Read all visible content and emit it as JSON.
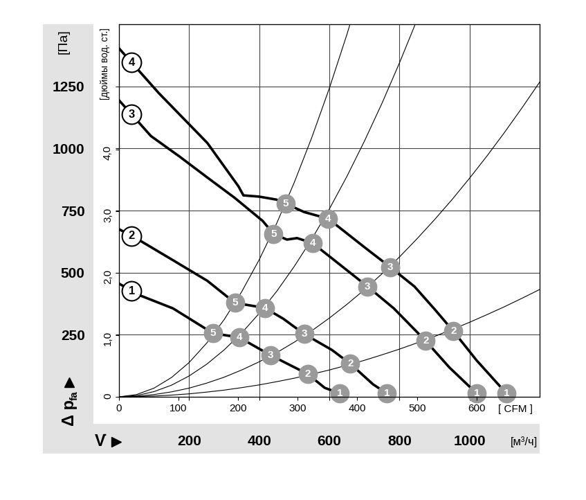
{
  "chart_data": {
    "type": "line",
    "xlabel": "V̇",
    "x_unit": "[м³/ч]",
    "x2_unit": "[ CFM ]",
    "ylabel": "Δ p",
    "ylabel_subscript": "fa",
    "y_unit": "[Па]",
    "y2_unit": "[дюймы вод. ст.]",
    "xlim": [
      0,
      1200
    ],
    "xticks": [
      200,
      400,
      600,
      800,
      1000
    ],
    "x2lim": [
      0,
      706
    ],
    "x2ticks": [
      0,
      100,
      200,
      300,
      400,
      500,
      600
    ],
    "ylim": [
      0,
      1500
    ],
    "yticks": [
      250,
      500,
      750,
      1000,
      1250
    ],
    "y2lim": [
      0,
      6.02
    ],
    "y2ticks": [
      0,
      {
        "value": 1.0,
        "label": "1,0"
      },
      {
        "value": 2.0,
        "label": "2,0"
      },
      {
        "value": 3.0,
        "label": "3,0"
      },
      {
        "value": 4.0,
        "label": "4,0"
      }
    ],
    "grid": true,
    "series": [
      {
        "name": "1",
        "color": "#000000",
        "x": [
          0,
          55,
          154,
          268,
          343,
          433,
          538,
          587,
          630,
          634
        ],
        "values": [
          456,
          411,
          356,
          256,
          239,
          167,
          92,
          36,
          14,
          0
        ],
        "points": {
          "x": [
            268,
            343,
            433,
            538,
            630
          ],
          "values": [
            256,
            239,
            167,
            92,
            14
          ],
          "labels": [
            "5",
            "4",
            "3",
            "2",
            "1"
          ]
        }
      },
      {
        "name": "2",
        "color": "#000000",
        "x": [
          0,
          55,
          154,
          252,
          331,
          416,
          469,
          528,
          607,
          660,
          725,
          764,
          768
        ],
        "values": [
          675,
          633,
          550,
          467,
          378,
          358,
          314,
          253,
          189,
          133,
          50,
          14,
          0
        ],
        "points": {
          "x": [
            331,
            416,
            528,
            660,
            764
          ],
          "values": [
            378,
            358,
            253,
            133,
            14
          ],
          "labels": [
            "5",
            "4",
            "3",
            "2",
            "1"
          ]
        }
      },
      {
        "name": "3",
        "color": "#000000",
        "x": [
          0,
          91,
          173,
          252,
          331,
          410,
          441,
          479,
          508,
          552,
          607,
          709,
          784,
          875,
          942,
          1020,
          1024
        ],
        "values": [
          1194,
          1050,
          967,
          883,
          800,
          708,
          656,
          633,
          639,
          619,
          558,
          444,
          356,
          225,
          119,
          14,
          0
        ],
        "points": {
          "x": [
            441,
            552,
            709,
            875,
            1020
          ],
          "values": [
            656,
            619,
            444,
            225,
            14
          ],
          "labels": [
            "5",
            "4",
            "3",
            "2",
            "1"
          ]
        }
      },
      {
        "name": "4",
        "color": "#000000",
        "x": [
          0,
          114,
          252,
          341,
          355,
          400,
          449,
          475,
          528,
          597,
          705,
          774,
          843,
          902,
          954,
          1020,
          1105,
          1109
        ],
        "values": [
          1403,
          1222,
          1022,
          847,
          811,
          806,
          794,
          778,
          744,
          717,
          597,
          522,
          444,
          350,
          264,
          147,
          14,
          0
        ],
        "points": {
          "x": [
            475,
            597,
            774,
            954,
            1105
          ],
          "values": [
            778,
            717,
            522,
            264,
            14
          ],
          "labels": [
            "5",
            "4",
            "3",
            "2",
            "1"
          ]
        }
      }
    ],
    "system_curves": [
      {
        "color": "#000000",
        "x": [
          0,
          50,
          100,
          150,
          200,
          250,
          300,
          350,
          400,
          450,
          500,
          550,
          600,
          650,
          700
        ],
        "values": [
          0,
          9,
          35,
          78,
          138,
          216,
          311,
          423,
          552,
          699,
          863,
          1044,
          1242,
          1458,
          1691
        ]
      },
      {
        "color": "#000000",
        "x": [
          0,
          50,
          100,
          150,
          200,
          250,
          300,
          350,
          400,
          450,
          500,
          550,
          600,
          650,
          700,
          750,
          800,
          850,
          900
        ],
        "values": [
          0,
          5,
          21,
          47,
          84,
          131,
          189,
          257,
          336,
          425,
          525,
          635,
          756,
          887,
          1029,
          1181,
          1344,
          1517,
          1701
        ]
      },
      {
        "color": "#000000",
        "x": [
          0,
          50,
          100,
          150,
          200,
          250,
          300,
          350,
          400,
          450,
          500,
          550,
          600,
          650,
          700,
          750,
          800,
          850,
          900,
          950,
          1000,
          1050,
          1100,
          1150,
          1200
        ],
        "values": [
          0,
          2,
          9,
          20,
          35,
          55,
          79,
          108,
          141,
          178,
          220,
          266,
          317,
          372,
          431,
          495,
          563,
          636,
          713,
          794,
          880,
          970,
          1065,
          1164,
          1267
        ]
      },
      {
        "color": "#000000",
        "x": [
          0,
          50,
          100,
          150,
          200,
          250,
          300,
          350,
          400,
          450,
          500,
          550,
          600,
          650,
          700,
          750,
          800,
          850,
          900,
          950,
          1000,
          1050,
          1100,
          1150,
          1200
        ],
        "values": [
          0,
          1,
          3,
          7,
          12,
          19,
          27,
          37,
          48,
          61,
          75,
          91,
          108,
          127,
          147,
          169,
          192,
          217,
          243,
          271,
          300,
          331,
          363,
          397,
          432
        ]
      }
    ]
  }
}
